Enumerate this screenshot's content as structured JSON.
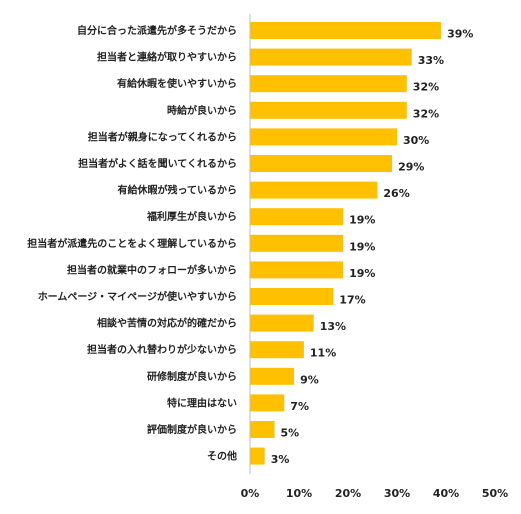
{
  "chart_data": {
    "type": "bar",
    "orientation": "horizontal",
    "categories": [
      "自分に合った派遣先が多そうだから",
      "担当者と連絡が取りやすいから",
      "有給休暇を使いやすいから",
      "時給が良いから",
      "担当者が親身になってくれるから",
      "担当者がよく話を聞いてくれるから",
      "有給休暇が残っているから",
      "福利厚生が良いから",
      "担当者が派遣先のことをよく理解しているから",
      "担当者の就業中のフォローが多いから",
      "ホームページ・マイページが使いやすいから",
      "相談や苦情の対応が的確だから",
      "担当者の入れ替わりが少ないから",
      "研修制度が良いから",
      "特に理由はない",
      "評価制度が良いから",
      "その他"
    ],
    "values": [
      39,
      33,
      32,
      32,
      30,
      29,
      26,
      19,
      19,
      19,
      17,
      13,
      11,
      9,
      7,
      5,
      3
    ],
    "value_labels": [
      "39%",
      "33%",
      "32%",
      "32%",
      "30%",
      "29%",
      "26%",
      "19%",
      "19%",
      "19%",
      "17%",
      "13%",
      "11%",
      "9%",
      "7%",
      "5%",
      "3%"
    ],
    "x_ticks": [
      "0%",
      "10%",
      "20%",
      "30%",
      "40%",
      "50%"
    ],
    "xlim": [
      0,
      50
    ],
    "grid": false,
    "bar_color": "#ffc000"
  }
}
